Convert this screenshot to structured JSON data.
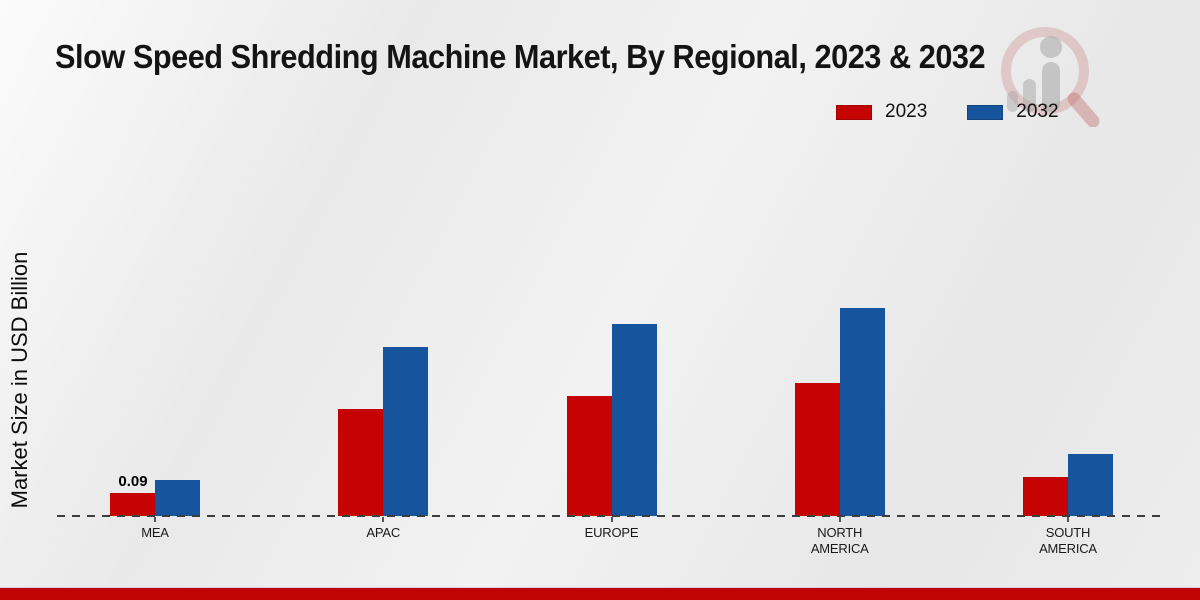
{
  "page": {
    "title": "Slow Speed Shredding Machine Market, By Regional, 2023 & 2032",
    "ylabel": "Market Size in USD Billion"
  },
  "colors": {
    "series_2023": "#c60303",
    "series_2032": "#16549e",
    "footer_bar": "#c00404",
    "axis_line": "#3d3d3d"
  },
  "watermark": {
    "icon": "magnifier-people-chart-logo"
  },
  "chart_data": {
    "type": "bar",
    "title": "Slow Speed Shredding Machine Market, By Regional, 2023 & 2032",
    "xlabel": "",
    "ylabel": "Market Size in USD Billion",
    "categories": [
      "MEA",
      "APAC",
      "EUROPE",
      "NORTH AMERICA",
      "SOUTH AMERICA"
    ],
    "series": [
      {
        "name": "2023",
        "color": "#c60303",
        "values": [
          0.09,
          0.41,
          0.46,
          0.51,
          0.15
        ]
      },
      {
        "name": "2032",
        "color": "#16549e",
        "values": [
          0.14,
          0.65,
          0.74,
          0.8,
          0.24
        ]
      }
    ],
    "ylim": [
      0,
      0.9
    ],
    "grid": false,
    "legend_position": "top-right",
    "data_labels": [
      {
        "category": "MEA",
        "series": "2023",
        "text": "0.09"
      }
    ]
  }
}
